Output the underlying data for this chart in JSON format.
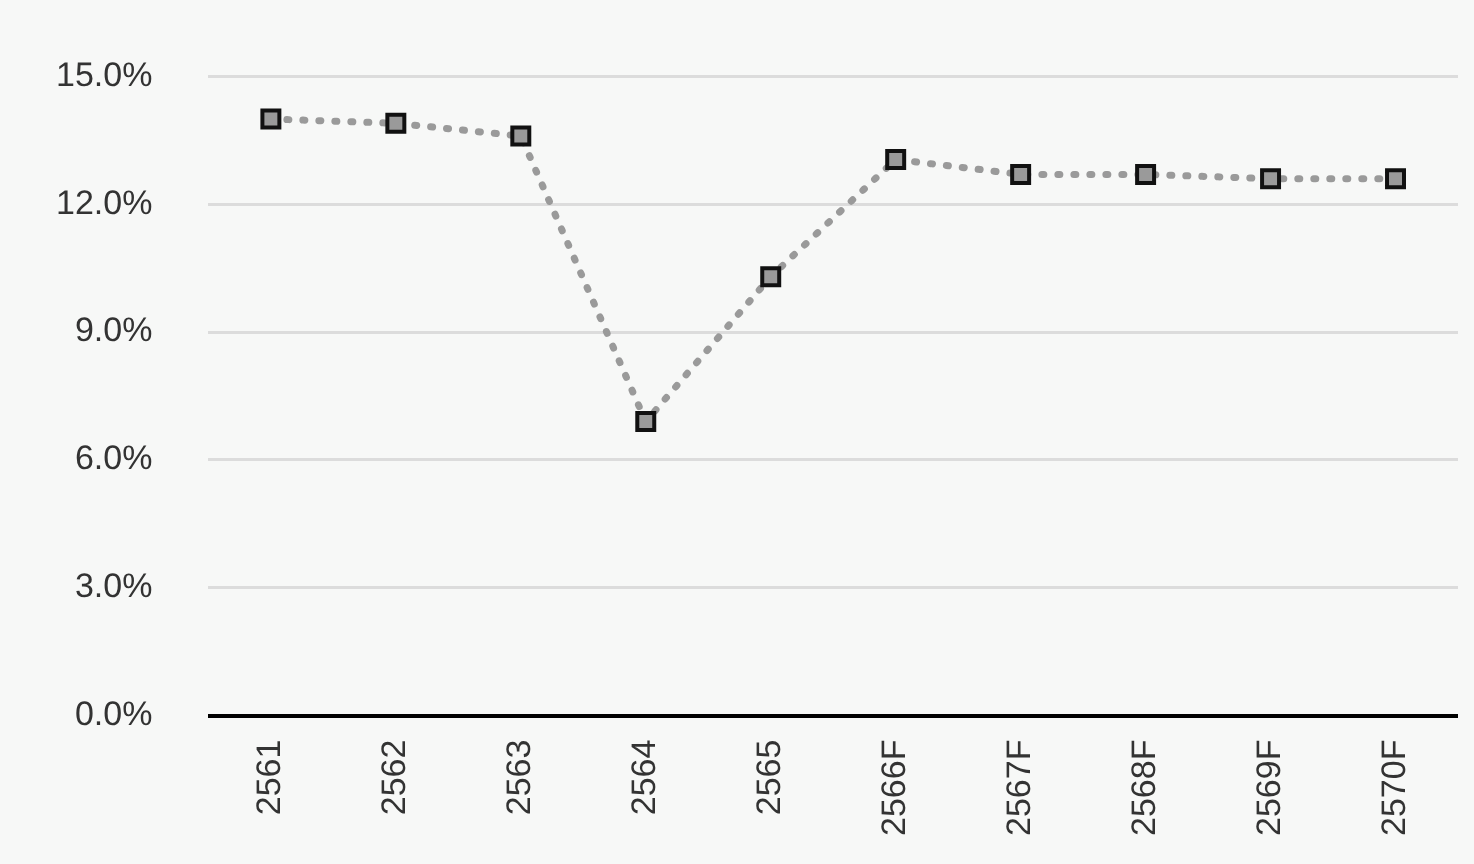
{
  "chart_data": {
    "type": "line",
    "categories": [
      "2561",
      "2562",
      "2563",
      "2564",
      "2565",
      "2566F",
      "2567F",
      "2568F",
      "2569F",
      "2570F"
    ],
    "series": [
      {
        "color": "#9a9a9a",
        "values": [
          14.0,
          13.9,
          13.6,
          6.9,
          10.3,
          13.05,
          12.7,
          12.7,
          12.6,
          12.6
        ]
      }
    ],
    "ylim": [
      0,
      15
    ],
    "yticks": [
      {
        "value": 0,
        "label": "0.0%"
      },
      {
        "value": 3,
        "label": "3.0%"
      },
      {
        "value": 6,
        "label": "6.0%"
      },
      {
        "value": 9,
        "label": "9.0%"
      },
      {
        "value": 12,
        "label": "12.0%"
      },
      {
        "value": 15,
        "label": "15.0%"
      }
    ],
    "grid": "y",
    "legend": false,
    "marker": "square",
    "line_style": "dotted"
  }
}
